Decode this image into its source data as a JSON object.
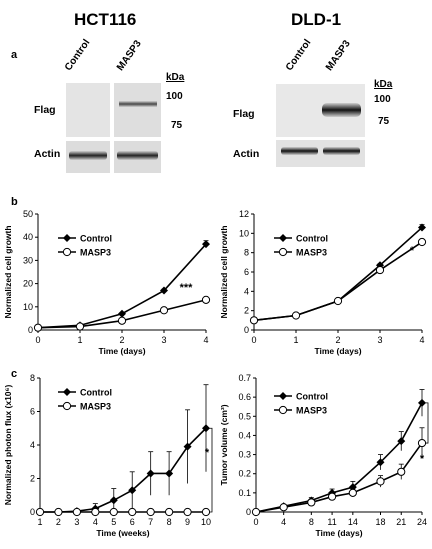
{
  "titles": {
    "left": "HCT116",
    "right": "DLD-1"
  },
  "panel_a": {
    "letter": "a",
    "left": {
      "lanes": [
        "Control",
        "MASP3"
      ],
      "rows": [
        "Flag",
        "Actin"
      ],
      "kda_label": "kDa",
      "markers": [
        "100",
        "75"
      ]
    },
    "right": {
      "lanes": [
        "Control",
        "MASP3"
      ],
      "rows": [
        "Flag",
        "Actin"
      ],
      "kda_label": "kDa",
      "markers": [
        "100",
        "75"
      ]
    }
  },
  "panel_b_letter": "b",
  "panel_c_letter": "c",
  "chart_data": [
    {
      "type": "line",
      "panel": "b-left",
      "ylabel": "Normalized cell growth",
      "xlabel": "Time (days)",
      "x": [
        0,
        1,
        2,
        3,
        4
      ],
      "xlim": [
        0,
        4
      ],
      "ylim": [
        0,
        50
      ],
      "xticks": [
        "0",
        "1",
        "2",
        "3",
        "4"
      ],
      "yticks": [
        "0",
        "10",
        "20",
        "30",
        "40",
        "50"
      ],
      "series": [
        {
          "name": "Control",
          "marker": "filled-diamond",
          "values": [
            1,
            2,
            7,
            17,
            37
          ],
          "err": [
            0,
            0.2,
            0.5,
            0.6,
            1.5
          ]
        },
        {
          "name": "MASP3",
          "marker": "open-circle",
          "values": [
            1,
            1.5,
            4,
            8.5,
            13
          ],
          "err": [
            0,
            0.2,
            0.3,
            0.4,
            0.7
          ]
        }
      ],
      "significance": "***"
    },
    {
      "type": "line",
      "panel": "b-right",
      "ylabel": "Normalized cell growth",
      "xlabel": "Time (days)",
      "x": [
        0,
        1,
        2,
        3,
        4
      ],
      "xlim": [
        0,
        4
      ],
      "ylim": [
        0,
        12
      ],
      "xticks": [
        "0",
        "1",
        "2",
        "3",
        "4"
      ],
      "yticks": [
        "0",
        "2",
        "4",
        "6",
        "8",
        "10",
        "12"
      ],
      "series": [
        {
          "name": "Control",
          "marker": "filled-diamond",
          "values": [
            1,
            1.5,
            3,
            6.7,
            10.6
          ],
          "err": [
            0,
            0.05,
            0.1,
            0.15,
            0.3
          ]
        },
        {
          "name": "MASP3",
          "marker": "open-circle",
          "values": [
            1,
            1.5,
            3,
            6.2,
            9.1
          ],
          "err": [
            0,
            0.05,
            0.1,
            0.15,
            0.2
          ]
        }
      ],
      "significance": "*"
    },
    {
      "type": "line",
      "panel": "c-left",
      "ylabel": "Normalized photon flux (x10⁶)",
      "xlabel": "Time (weeks)",
      "x": [
        1,
        2,
        3,
        4,
        5,
        6,
        7,
        8,
        9,
        10
      ],
      "xlim": [
        1,
        10
      ],
      "ylim": [
        0,
        8
      ],
      "xticks": [
        "1",
        "2",
        "3",
        "4",
        "5",
        "6",
        "7",
        "8",
        "9",
        "10"
      ],
      "yticks": [
        "0",
        "2",
        "4",
        "6",
        "8"
      ],
      "series": [
        {
          "name": "Control",
          "marker": "filled-diamond",
          "values": [
            0,
            0,
            0.05,
            0.2,
            0.7,
            1.3,
            2.3,
            2.3,
            3.9,
            5.0
          ],
          "err": [
            0,
            0,
            0.05,
            0.3,
            0.7,
            1.1,
            1.3,
            1.3,
            2.2,
            2.6
          ]
        },
        {
          "name": "MASP3",
          "marker": "open-circle",
          "values": [
            0,
            0,
            0,
            0,
            0,
            0,
            0,
            0,
            0,
            0
          ],
          "err": [
            0,
            0,
            0,
            0,
            0,
            0,
            0,
            0,
            0,
            0
          ]
        }
      ],
      "significance": "*"
    },
    {
      "type": "line",
      "panel": "c-right",
      "ylabel": "Tumor volume (cm³)",
      "xlabel": "Time (days)",
      "x": [
        0,
        4,
        8,
        11,
        14,
        18,
        21,
        24
      ],
      "xlim": [
        0,
        24
      ],
      "ylim": [
        0,
        0.7
      ],
      "xticks": [
        "0",
        "4",
        "8",
        "11",
        "14",
        "18",
        "21",
        "24"
      ],
      "yticks": [
        "0",
        "0.1",
        "0.2",
        "0.3",
        "0.4",
        "0.5",
        "0.6",
        "0.7"
      ],
      "series": [
        {
          "name": "Control",
          "marker": "filled-diamond",
          "values": [
            0,
            0.03,
            0.06,
            0.1,
            0.13,
            0.26,
            0.37,
            0.57
          ],
          "err": [
            0,
            0.01,
            0.015,
            0.02,
            0.03,
            0.04,
            0.05,
            0.07
          ]
        },
        {
          "name": "MASP3",
          "marker": "open-circle",
          "values": [
            0,
            0.025,
            0.05,
            0.08,
            0.1,
            0.16,
            0.21,
            0.36
          ],
          "err": [
            0,
            0.01,
            0.01,
            0.02,
            0.02,
            0.03,
            0.04,
            0.08
          ]
        }
      ],
      "significance": "*"
    }
  ]
}
